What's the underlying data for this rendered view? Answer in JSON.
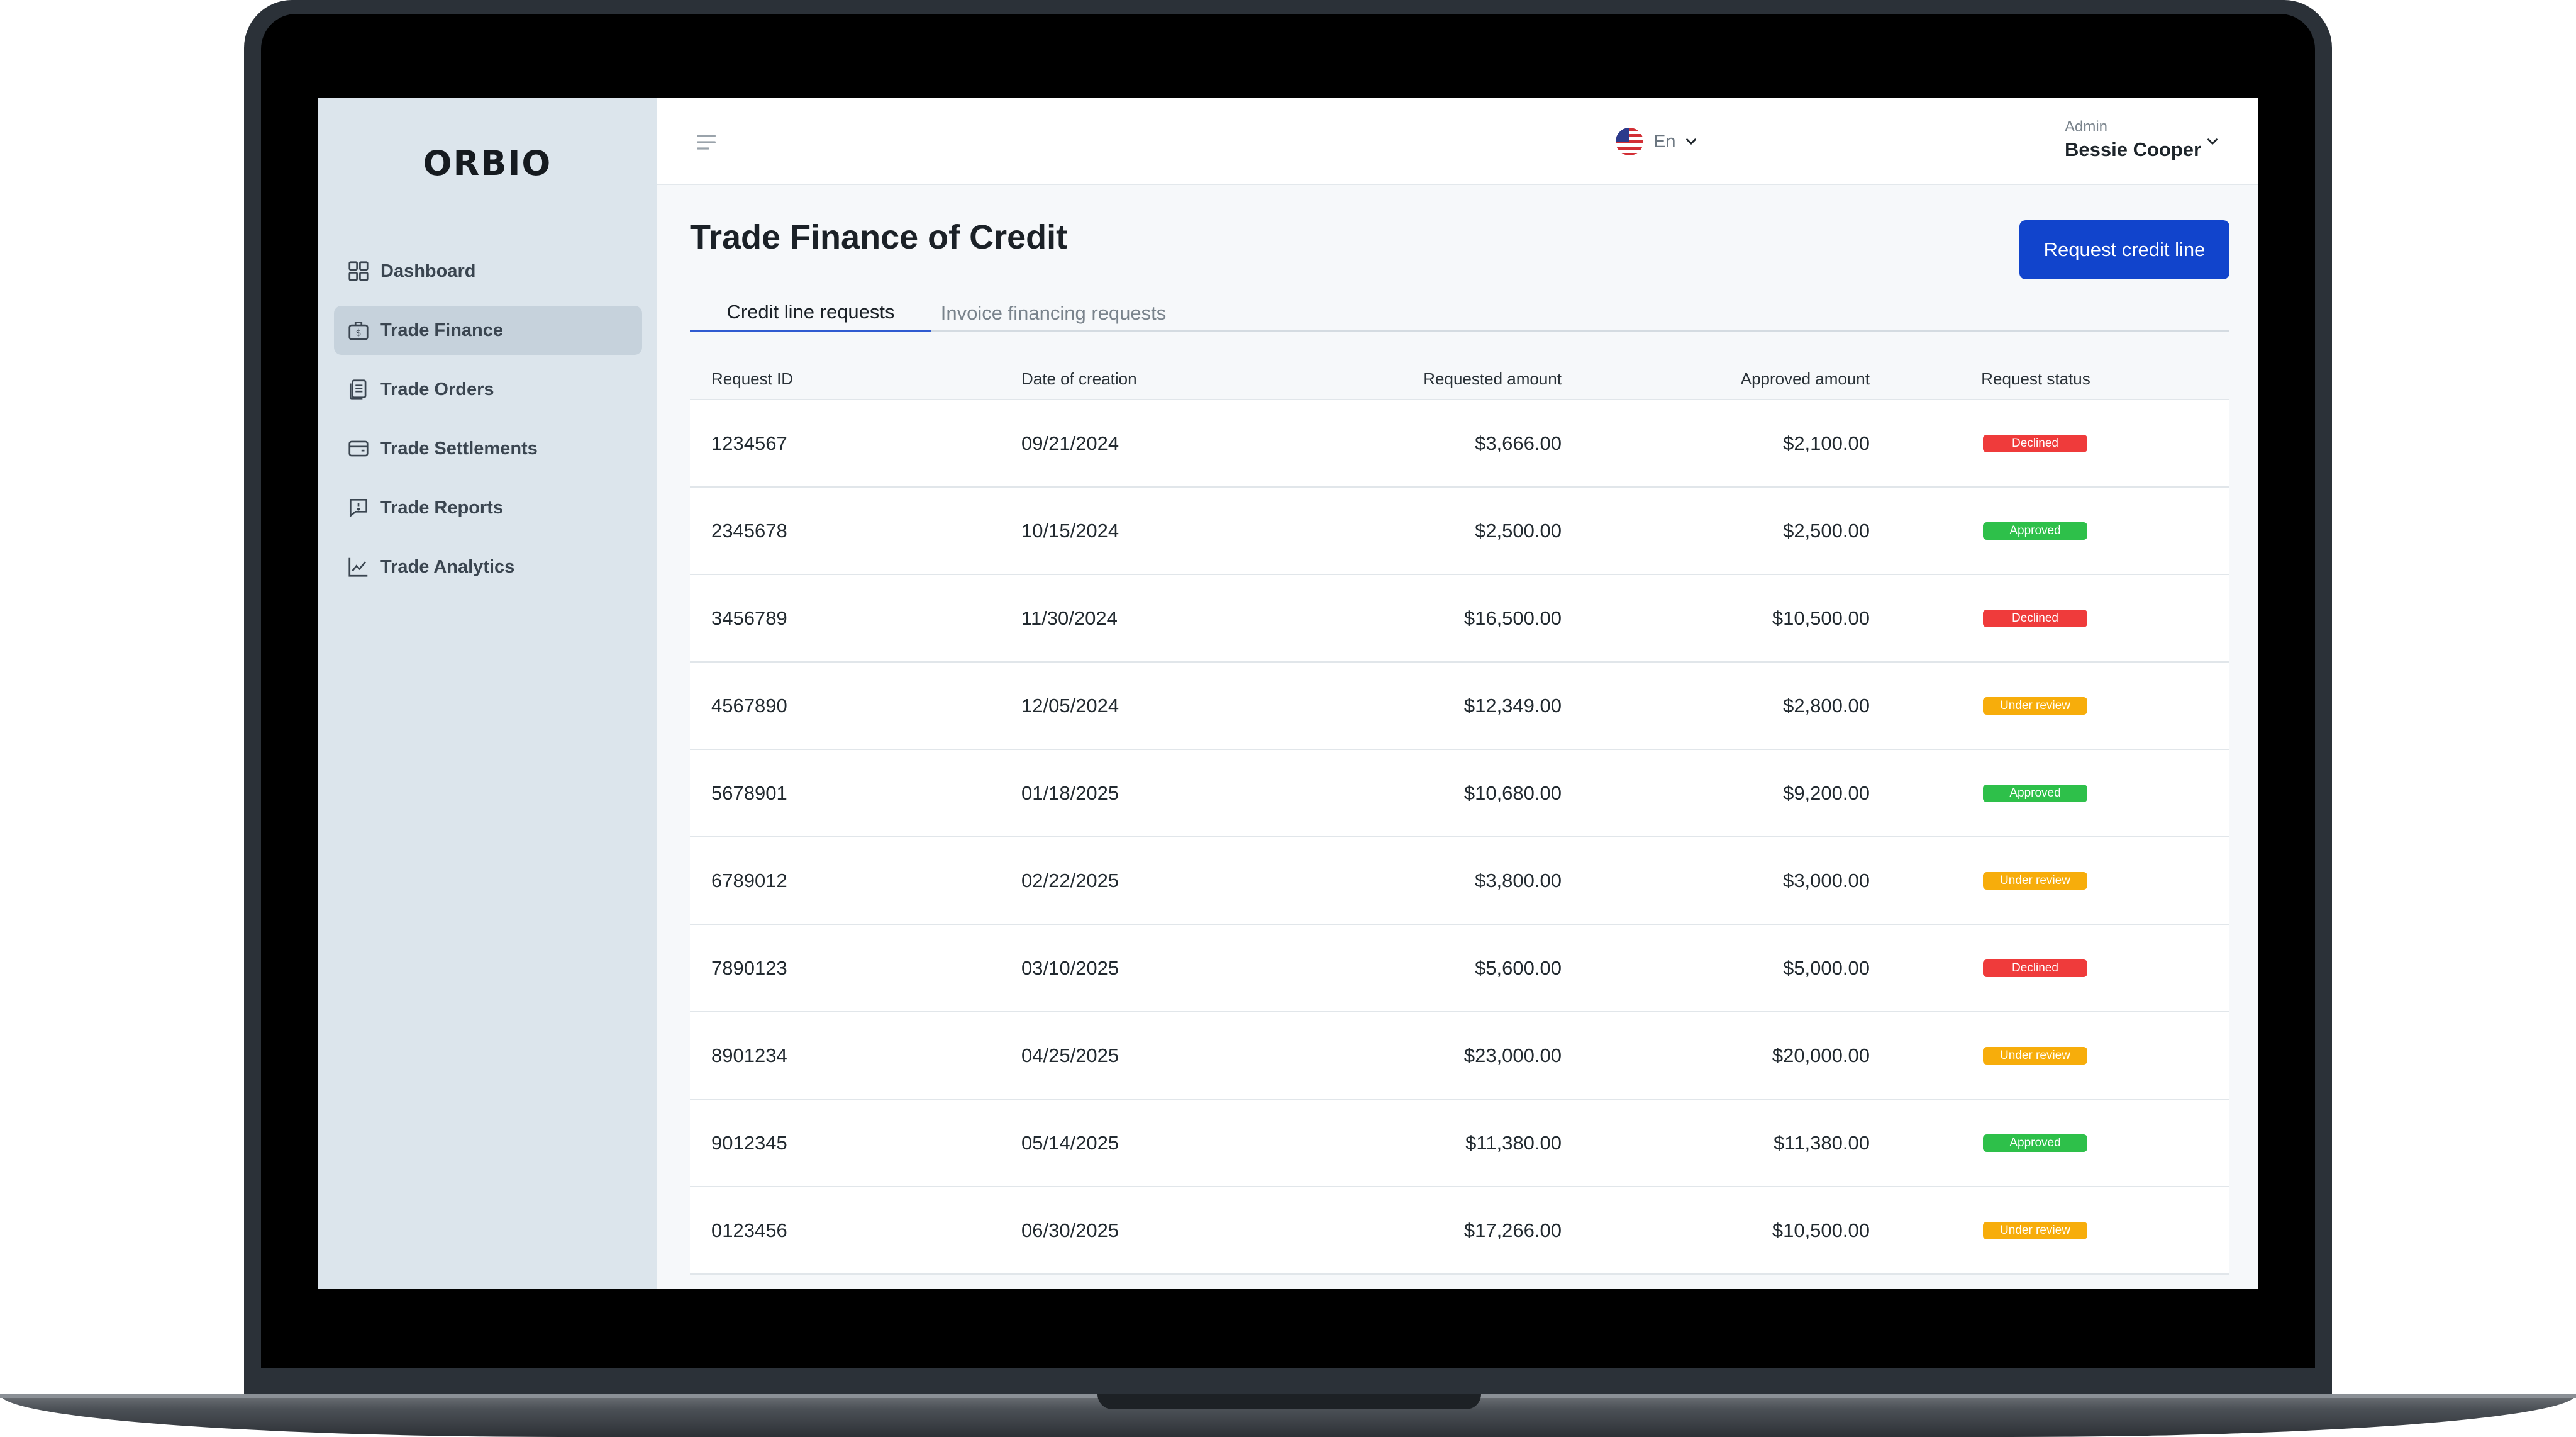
{
  "brand": {
    "logo_text": "ORBIO"
  },
  "sidebar": {
    "items": [
      {
        "label": "Dashboard",
        "icon": "grid-icon",
        "active": false
      },
      {
        "label": "Trade Finance",
        "icon": "money-bag-icon",
        "active": true
      },
      {
        "label": "Trade Orders",
        "icon": "documents-icon",
        "active": false
      },
      {
        "label": "Trade Settlements",
        "icon": "wallet-icon",
        "active": false
      },
      {
        "label": "Trade Reports",
        "icon": "report-alert-icon",
        "active": false
      },
      {
        "label": "Trade Analytics",
        "icon": "line-chart-icon",
        "active": false
      }
    ]
  },
  "header": {
    "menu_icon": "hamburger-icon",
    "language": {
      "label": "En",
      "flag": "us-flag-icon"
    },
    "user": {
      "role": "Admin",
      "name": "Bessie Cooper"
    }
  },
  "main": {
    "title": "Trade Finance of Credit",
    "primary_action": "Request credit line",
    "tabs": [
      {
        "label": "Credit line requests",
        "active": true
      },
      {
        "label": "Invoice financing requests",
        "active": false
      }
    ],
    "table": {
      "columns": [
        "Request ID",
        "Date of creation",
        "Requested amount",
        "Approved amount",
        "Request status"
      ],
      "rows": [
        {
          "id": "1234567",
          "date": "09/21/2024",
          "requested": "$3,666.00",
          "approved": "$2,100.00",
          "status": "Declined"
        },
        {
          "id": "2345678",
          "date": "10/15/2024",
          "requested": "$2,500.00",
          "approved": "$2,500.00",
          "status": "Approved"
        },
        {
          "id": "3456789",
          "date": "11/30/2024",
          "requested": "$16,500.00",
          "approved": "$10,500.00",
          "status": "Declined"
        },
        {
          "id": "4567890",
          "date": "12/05/2024",
          "requested": "$12,349.00",
          "approved": "$2,800.00",
          "status": "Under review"
        },
        {
          "id": "5678901",
          "date": "01/18/2025",
          "requested": "$10,680.00",
          "approved": "$9,200.00",
          "status": "Approved"
        },
        {
          "id": "6789012",
          "date": "02/22/2025",
          "requested": "$3,800.00",
          "approved": "$3,000.00",
          "status": "Under review"
        },
        {
          "id": "7890123",
          "date": "03/10/2025",
          "requested": "$5,600.00",
          "approved": "$5,000.00",
          "status": "Declined"
        },
        {
          "id": "8901234",
          "date": "04/25/2025",
          "requested": "$23,000.00",
          "approved": "$20,000.00",
          "status": "Under review"
        },
        {
          "id": "9012345",
          "date": "05/14/2025",
          "requested": "$11,380.00",
          "approved": "$11,380.00",
          "status": "Approved"
        },
        {
          "id": "0123456",
          "date": "06/30/2025",
          "requested": "$17,266.00",
          "approved": "$10,500.00",
          "status": "Under review"
        }
      ]
    }
  },
  "colors": {
    "primary": "#1144cc",
    "sidebar_bg": "#dce5ec",
    "status_declined": "#ef3b3b",
    "status_approved": "#2ec04a",
    "status_under_review": "#f7ad0b"
  }
}
